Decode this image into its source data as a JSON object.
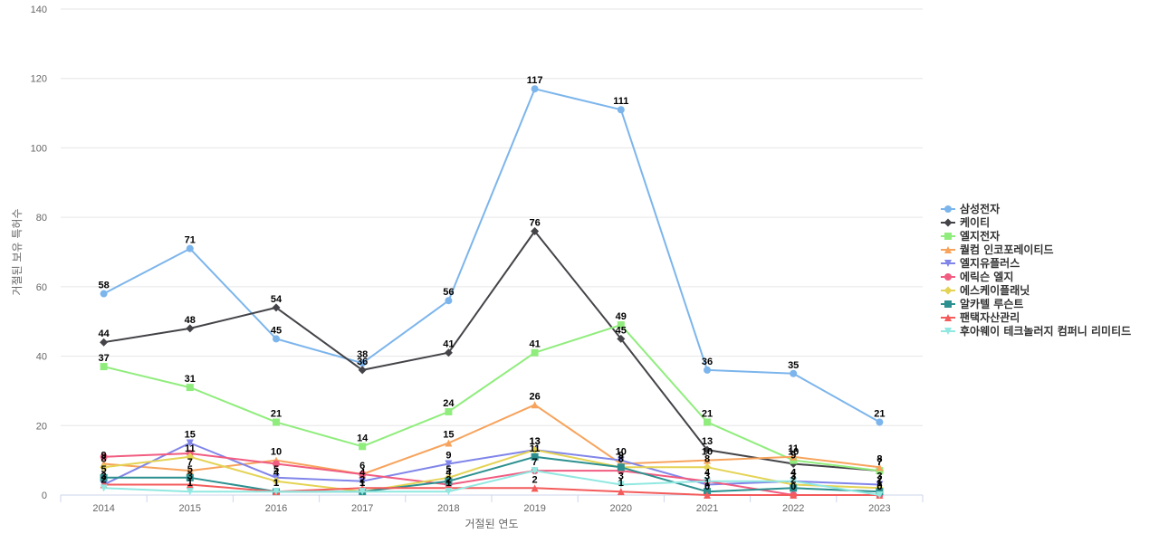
{
  "chart_data": {
    "type": "line",
    "title": "",
    "xlabel": "거절된 연도",
    "ylabel": "거절된 보유 특허수",
    "ylim": [
      0,
      140
    ],
    "yticks": [
      0,
      20,
      40,
      60,
      80,
      100,
      120,
      140
    ],
    "categories": [
      "2014",
      "2015",
      "2016",
      "2017",
      "2018",
      "2019",
      "2020",
      "2021",
      "2022",
      "2023"
    ],
    "legend_position": "right",
    "series": [
      {
        "name": "삼성전자",
        "color": "#7cb5ec",
        "marker": "circle",
        "labeled": true,
        "values": [
          58,
          71,
          45,
          38,
          56,
          117,
          111,
          36,
          35,
          21
        ]
      },
      {
        "name": "케이티",
        "color": "#434348",
        "marker": "diamond",
        "labeled": true,
        "values": [
          44,
          48,
          54,
          36,
          41,
          76,
          45,
          13,
          9,
          7
        ]
      },
      {
        "name": "엘지전자",
        "color": "#90ed7d",
        "marker": "square",
        "labeled": true,
        "values": [
          37,
          31,
          21,
          14,
          24,
          41,
          49,
          21,
          10,
          7
        ]
      },
      {
        "name": "퀄컴 인코포레이티드",
        "color": "#f7a35c",
        "marker": "triangle",
        "labeled": true,
        "values": [
          9,
          7,
          10,
          6,
          15,
          26,
          9,
          10,
          11,
          8
        ]
      },
      {
        "name": "엘지유플러스",
        "color": "#8085e9",
        "marker": "triangle-down",
        "labeled": true,
        "values": [
          3,
          15,
          5,
          4,
          9,
          13,
          10,
          3,
          4,
          3
        ]
      },
      {
        "name": "에릭슨 엘지",
        "color": "#f15c80",
        "marker": "circle",
        "labeled": false,
        "values": [
          11,
          12,
          9,
          6,
          3,
          7,
          7,
          4,
          0,
          0
        ]
      },
      {
        "name": "에스케이플래닛",
        "color": "#e4d354",
        "marker": "diamond",
        "labeled": true,
        "values": [
          8,
          11,
          4,
          1,
          5,
          13,
          8,
          8,
          3,
          2
        ]
      },
      {
        "name": "알카텔 루슨트",
        "color": "#2b908f",
        "marker": "square",
        "labeled": true,
        "values": [
          5,
          5,
          1,
          1,
          4,
          11,
          8,
          1,
          2,
          1
        ]
      },
      {
        "name": "팬택자산관리",
        "color": "#f45b5b",
        "marker": "triangle",
        "labeled": true,
        "values": [
          3,
          3,
          1,
          2,
          2,
          2,
          1,
          0,
          0,
          0
        ]
      },
      {
        "name": "후아웨이 테크놀러지 컴퍼니 리미티드",
        "color": "#91e8e1",
        "marker": "triangle-down",
        "labeled": true,
        "values": [
          2,
          1,
          1,
          1,
          1,
          7,
          3,
          4,
          4,
          0
        ]
      }
    ]
  }
}
